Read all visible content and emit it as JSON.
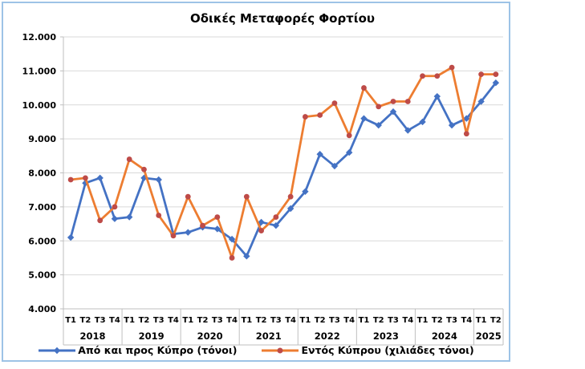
{
  "chart_data": {
    "type": "line",
    "title": "Οδικές Μεταφορές Φορτίου",
    "xlabel": "",
    "ylabel": "",
    "ylim": [
      4000,
      12000
    ],
    "grid": true,
    "legend_position": "bottom",
    "y_axis": {
      "min": 4000,
      "max": 12000,
      "step": 1000,
      "tick_labels": [
        "12.000",
        "11.000",
        "10.000",
        "9.000",
        "8.000",
        "7.000",
        "6.000",
        "5.000",
        "4.000"
      ]
    },
    "x_axis": {
      "years": [
        {
          "label": "2018",
          "quarters": [
            "Τ1",
            "Τ2",
            "Τ3",
            "Τ4"
          ]
        },
        {
          "label": "2019",
          "quarters": [
            "Τ1",
            "Τ2",
            "Τ3",
            "Τ4"
          ]
        },
        {
          "label": "2020",
          "quarters": [
            "Τ1",
            "Τ2",
            "Τ3",
            "Τ4"
          ]
        },
        {
          "label": "2021",
          "quarters": [
            "Τ1",
            "Τ2",
            "Τ3",
            "Τ4"
          ]
        },
        {
          "label": "2022",
          "quarters": [
            "Τ1",
            "Τ2",
            "Τ3",
            "Τ4"
          ]
        },
        {
          "label": "2023",
          "quarters": [
            "Τ1",
            "Τ2",
            "Τ3",
            "Τ4"
          ]
        },
        {
          "label": "2024",
          "quarters": [
            "Τ1",
            "Τ2",
            "Τ3",
            "Τ4"
          ]
        },
        {
          "label": "2025",
          "quarters": [
            "Τ1",
            "Τ2"
          ]
        }
      ]
    },
    "categories": [
      "Τ1 2018",
      "Τ2 2018",
      "Τ3 2018",
      "Τ4 2018",
      "Τ1 2019",
      "Τ2 2019",
      "Τ3 2019",
      "Τ4 2019",
      "Τ1 2020",
      "Τ2 2020",
      "Τ3 2020",
      "Τ4 2020",
      "Τ1 2021",
      "Τ2 2021",
      "Τ3 2021",
      "Τ4 2021",
      "Τ1 2022",
      "Τ2 2022",
      "Τ3 2022",
      "Τ4 2022",
      "Τ1 2023",
      "Τ2 2023",
      "Τ3 2023",
      "Τ4 2023",
      "Τ1 2024",
      "Τ2 2024",
      "Τ3 2024",
      "Τ4 2024",
      "Τ1 2025",
      "Τ2 2025"
    ],
    "series": [
      {
        "name": "Από και προς Κύπρο (τόνοι)",
        "color": "#4472C4",
        "marker": "diamond",
        "marker_color": "#4472C4",
        "values": [
          6100,
          7700,
          7850,
          6650,
          6700,
          7850,
          7800,
          6200,
          6250,
          6400,
          6350,
          6050,
          5550,
          6550,
          6450,
          6950,
          7450,
          8550,
          8200,
          8600,
          9600,
          9400,
          9800,
          9250,
          9500,
          10250,
          9400,
          9600,
          10100,
          10650
        ]
      },
      {
        "name": "Εντός Κύπρου (χιλιάδες τόνοι)",
        "color": "#ED7D31",
        "marker": "circle",
        "marker_color": "#BE4B48",
        "values": [
          7800,
          7850,
          6600,
          7000,
          8400,
          8100,
          6750,
          6150,
          7300,
          6450,
          6700,
          5500,
          7300,
          6300,
          6700,
          7300,
          9650,
          9700,
          10050,
          9100,
          10500,
          9950,
          10100,
          10100,
          10850,
          10850,
          11100,
          9150,
          10900,
          10900
        ]
      }
    ]
  },
  "style": {
    "frame_border": "#9DC3E6",
    "grid_color": "#D9D9D9",
    "axis_color": "#BFBFBF",
    "text_color": "#000000",
    "background": "#FFFFFF"
  }
}
